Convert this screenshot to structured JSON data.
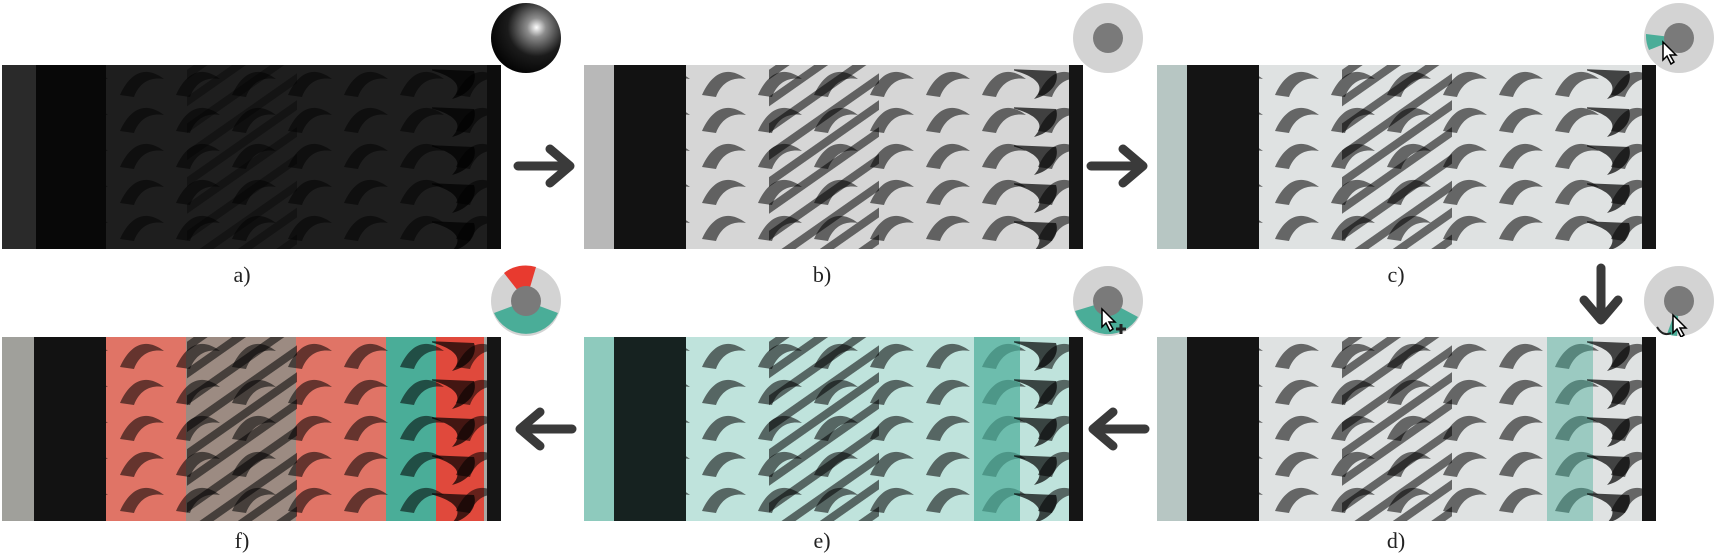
{
  "panels": [
    {
      "id": "a",
      "caption": "a)"
    },
    {
      "id": "b",
      "caption": "b)"
    },
    {
      "id": "c",
      "caption": "c)"
    },
    {
      "id": "d",
      "caption": "d)"
    },
    {
      "id": "e",
      "caption": "e)"
    },
    {
      "id": "f",
      "caption": "f)"
    }
  ],
  "colors": {
    "teal": "#4aad98",
    "red": "#e83a2f",
    "arrow": "#3a3a3a",
    "widget_ring": "#d3d3d3",
    "widget_core": "#7a7a7a"
  }
}
